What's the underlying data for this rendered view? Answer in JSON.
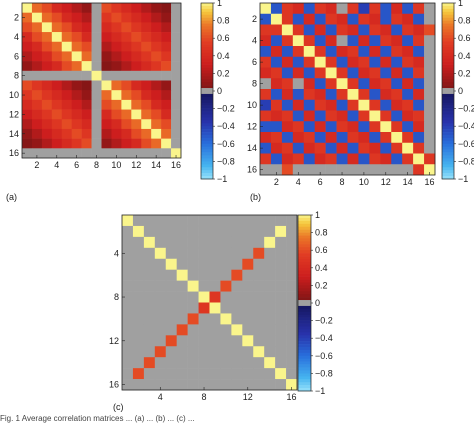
{
  "chart_data": [
    {
      "type": "heatmap",
      "panel_label": "(a)",
      "matrix_size": 16,
      "x_ticks": [
        "2",
        "4",
        "6",
        "8",
        "10",
        "12",
        "14",
        "16"
      ],
      "y_ticks": [
        "2",
        "4",
        "6",
        "8",
        "10",
        "12",
        "14",
        "16"
      ],
      "colorbar_ticks": [
        "1",
        "0.8",
        "0.6",
        "0.4",
        "0.2",
        "0",
        "−0.2",
        "−0.4",
        "−0.6",
        "−0.8",
        "−1"
      ],
      "clim": [
        -1,
        1
      ],
      "values": [
        [
          1,
          0.7,
          0.6,
          0.4,
          0.3,
          0.2,
          0.1,
          0,
          0.6,
          0.5,
          0.4,
          0.3,
          0.2,
          0.1,
          0.05,
          0
        ],
        [
          0.7,
          1,
          0.7,
          0.6,
          0.4,
          0.3,
          0.2,
          0,
          0.5,
          0.6,
          0.5,
          0.4,
          0.3,
          0.2,
          0.1,
          0
        ],
        [
          0.6,
          0.7,
          1,
          0.7,
          0.6,
          0.4,
          0.3,
          0,
          0.4,
          0.5,
          0.6,
          0.5,
          0.4,
          0.3,
          0.2,
          0
        ],
        [
          0.4,
          0.6,
          0.7,
          1,
          0.7,
          0.6,
          0.4,
          0,
          0.3,
          0.4,
          0.5,
          0.6,
          0.5,
          0.4,
          0.3,
          0
        ],
        [
          0.3,
          0.4,
          0.6,
          0.7,
          1,
          0.7,
          0.6,
          0,
          0.2,
          0.3,
          0.4,
          0.5,
          0.6,
          0.5,
          0.4,
          0
        ],
        [
          0.2,
          0.3,
          0.4,
          0.6,
          0.7,
          1,
          0.7,
          0,
          0.1,
          0.2,
          0.3,
          0.4,
          0.5,
          0.6,
          0.5,
          0
        ],
        [
          0.1,
          0.2,
          0.3,
          0.4,
          0.6,
          0.7,
          1,
          0,
          0.05,
          0.1,
          0.2,
          0.3,
          0.4,
          0.5,
          0.6,
          0
        ],
        [
          0,
          0,
          0,
          0,
          0,
          0,
          0,
          1,
          0,
          0,
          0,
          0,
          0,
          0,
          0,
          0
        ],
        [
          0.6,
          0.5,
          0.4,
          0.3,
          0.2,
          0.1,
          0.05,
          0,
          1,
          0.7,
          0.6,
          0.4,
          0.3,
          0.2,
          0.1,
          0
        ],
        [
          0.5,
          0.6,
          0.5,
          0.4,
          0.3,
          0.2,
          0.1,
          0,
          0.7,
          1,
          0.7,
          0.6,
          0.4,
          0.3,
          0.2,
          0
        ],
        [
          0.4,
          0.5,
          0.6,
          0.5,
          0.4,
          0.3,
          0.2,
          0,
          0.6,
          0.7,
          1,
          0.7,
          0.6,
          0.4,
          0.3,
          0
        ],
        [
          0.3,
          0.4,
          0.5,
          0.6,
          0.5,
          0.4,
          0.3,
          0,
          0.4,
          0.6,
          0.7,
          1,
          0.7,
          0.6,
          0.4,
          0
        ],
        [
          0.2,
          0.3,
          0.4,
          0.5,
          0.6,
          0.5,
          0.4,
          0,
          0.3,
          0.4,
          0.6,
          0.7,
          1,
          0.7,
          0.6,
          0
        ],
        [
          0.1,
          0.2,
          0.3,
          0.4,
          0.5,
          0.6,
          0.5,
          0,
          0.2,
          0.3,
          0.4,
          0.6,
          0.7,
          1,
          0.7,
          0
        ],
        [
          0.05,
          0.1,
          0.2,
          0.3,
          0.4,
          0.5,
          0.6,
          0,
          0.1,
          0.2,
          0.3,
          0.4,
          0.6,
          0.7,
          1,
          0
        ],
        [
          0,
          0,
          0,
          0,
          0,
          0,
          0,
          0,
          0,
          0,
          0,
          0,
          0,
          0,
          0,
          1
        ]
      ]
    },
    {
      "type": "heatmap",
      "panel_label": "(b)",
      "matrix_size": 16,
      "x_ticks": [
        "2",
        "4",
        "6",
        "8",
        "10",
        "12",
        "14",
        "16"
      ],
      "y_ticks": [
        "2",
        "4",
        "6",
        "8",
        "10",
        "12",
        "14",
        "16"
      ],
      "colorbar_ticks": [
        "1",
        "0.8",
        "0.6",
        "0.4",
        "0.2",
        "0",
        "−0.2",
        "−0.4",
        "−0.6",
        "−0.8",
        "−1"
      ],
      "clim": [
        -1,
        1
      ],
      "values": [
        [
          1,
          -0.5,
          0.5,
          0.4,
          -0.5,
          0.5,
          0.4,
          0,
          0.5,
          -0.4,
          0.5,
          -0.5,
          0.4,
          -0.5,
          0.5,
          0
        ],
        [
          -0.5,
          1,
          0.5,
          -0.5,
          0.4,
          -0.5,
          0.5,
          0.4,
          -0.5,
          0.5,
          0.4,
          -0.5,
          0.5,
          0.4,
          -0.5,
          0
        ],
        [
          0.5,
          0.5,
          1,
          0.5,
          -0.5,
          0.4,
          -0.5,
          0.5,
          0.4,
          -0.5,
          0.5,
          0.4,
          -0.5,
          0.5,
          0.4,
          0.6
        ],
        [
          0.4,
          -0.5,
          0.5,
          1,
          0.5,
          -0.5,
          0.4,
          0,
          -0.5,
          0.4,
          -0.5,
          0.5,
          0.4,
          -0.5,
          0.5,
          0
        ],
        [
          -0.5,
          0.4,
          -0.5,
          0.5,
          1,
          0.5,
          -0.5,
          0.4,
          0.5,
          -0.5,
          0.4,
          -0.5,
          0.5,
          0.4,
          -0.5,
          0
        ],
        [
          0.5,
          -0.5,
          0.4,
          -0.5,
          0.5,
          1,
          0.5,
          -0.5,
          0.4,
          0.5,
          -0.5,
          0.4,
          -0.5,
          0.5,
          0.4,
          0
        ],
        [
          0.4,
          0.5,
          -0.5,
          0.4,
          -0.5,
          0.5,
          1,
          0.5,
          -0.5,
          0.4,
          0.5,
          -0.5,
          0.4,
          -0.5,
          0.5,
          0
        ],
        [
          0,
          0.4,
          0.5,
          0,
          0.4,
          -0.5,
          0.5,
          1,
          0.5,
          -0.5,
          0.4,
          0.5,
          -0.5,
          0.4,
          -0.5,
          0
        ],
        [
          0.5,
          -0.5,
          0.4,
          -0.5,
          0.5,
          0.4,
          -0.5,
          0.5,
          1,
          0.5,
          -0.5,
          0.4,
          0.5,
          -0.5,
          0.4,
          0
        ],
        [
          -0.4,
          0.5,
          -0.5,
          0.4,
          -0.5,
          0.5,
          0.4,
          -0.5,
          0.5,
          1,
          0.5,
          -0.5,
          0.4,
          0.5,
          -0.5,
          0
        ],
        [
          0.5,
          0.4,
          0.5,
          -0.5,
          0.4,
          -0.5,
          0.5,
          0.4,
          -0.5,
          0.5,
          1,
          0.5,
          -0.5,
          0.4,
          0.5,
          0
        ],
        [
          -0.5,
          -0.5,
          0.4,
          0.5,
          -0.5,
          0.4,
          -0.5,
          0.5,
          0.4,
          -0.5,
          0.5,
          1,
          0.5,
          -0.5,
          0.4,
          0
        ],
        [
          0.4,
          0.5,
          -0.5,
          0.4,
          0.5,
          -0.5,
          0.4,
          -0.5,
          0.5,
          0.4,
          -0.5,
          0.5,
          1,
          0.5,
          -0.5,
          0
        ],
        [
          -0.5,
          0.4,
          0.5,
          -0.5,
          0.4,
          0.5,
          -0.5,
          0.4,
          -0.5,
          0.5,
          0.4,
          -0.5,
          0.5,
          1,
          0.5,
          0
        ],
        [
          0.5,
          -0.5,
          0.4,
          0.5,
          -0.5,
          0.4,
          0.5,
          -0.5,
          0.4,
          -0.5,
          0.5,
          0.4,
          -0.5,
          0.5,
          1,
          0.5
        ],
        [
          0,
          0,
          0.6,
          0,
          0,
          0,
          0,
          0,
          0,
          0,
          0,
          0,
          0,
          0,
          0.5,
          1
        ]
      ]
    },
    {
      "type": "heatmap",
      "panel_label": "(c)",
      "matrix_size": 16,
      "x_ticks": [
        "4",
        "8",
        "12",
        "16"
      ],
      "y_ticks": [
        "4",
        "8",
        "12",
        "16"
      ],
      "colorbar_ticks": [
        "1",
        "0.8",
        "0.6",
        "0.4",
        "0.2",
        "0",
        "−0.2",
        "−0.4",
        "−0.6",
        "−0.8",
        "−1"
      ],
      "clim": [
        -1,
        1
      ],
      "values": [
        [
          1,
          0,
          0,
          0,
          0,
          0,
          0,
          0,
          0,
          0,
          0,
          0,
          0,
          0,
          0,
          0
        ],
        [
          0,
          1,
          0,
          0,
          0,
          0,
          0,
          0,
          0,
          0,
          0,
          0,
          0,
          0,
          1,
          0
        ],
        [
          0,
          0,
          1,
          0,
          0,
          0,
          0,
          0,
          0,
          0,
          0,
          0,
          0,
          1,
          0,
          0
        ],
        [
          0,
          0,
          0,
          1,
          0,
          0,
          0,
          0,
          0,
          0,
          0,
          0,
          0.6,
          0,
          0,
          0
        ],
        [
          0,
          0,
          0,
          0,
          1,
          0,
          0,
          0,
          0,
          0,
          0,
          0.6,
          0,
          0,
          0,
          0
        ],
        [
          0,
          0,
          0,
          0,
          0,
          1,
          0,
          0,
          0,
          0,
          0.6,
          0,
          0,
          0,
          0,
          0
        ],
        [
          0,
          0,
          0,
          0,
          0,
          0,
          1,
          0,
          0,
          0.6,
          0,
          0,
          0,
          0,
          0,
          0
        ],
        [
          0,
          0,
          0,
          0,
          0,
          0,
          0,
          1,
          0.5,
          0,
          0,
          0,
          0,
          0,
          0,
          0
        ],
        [
          0,
          0,
          0,
          0,
          0,
          0,
          0,
          0.5,
          1,
          0,
          0,
          0,
          0,
          0,
          0,
          0
        ],
        [
          0,
          0,
          0,
          0,
          0,
          0,
          0.6,
          0,
          0,
          1,
          0,
          0,
          0,
          0,
          0,
          0
        ],
        [
          0,
          0,
          0,
          0,
          0,
          0.6,
          0,
          0,
          0,
          0,
          1,
          0,
          0,
          0,
          0,
          0
        ],
        [
          0,
          0,
          0,
          0,
          0.6,
          0,
          0,
          0,
          0,
          0,
          0,
          1,
          0,
          0,
          0,
          0
        ],
        [
          0,
          0,
          0,
          0.6,
          0,
          0,
          0,
          0,
          0,
          0,
          0,
          0,
          1,
          0,
          0,
          0
        ],
        [
          0,
          0,
          0.6,
          0,
          0,
          0,
          0,
          0,
          0,
          0,
          0,
          0,
          0,
          1,
          0,
          0
        ],
        [
          0,
          0.6,
          0,
          0,
          0,
          0,
          0,
          0,
          0,
          0,
          0,
          0,
          0,
          0,
          1,
          0
        ],
        [
          0,
          0,
          0,
          0,
          0,
          0,
          0,
          0,
          0,
          0,
          0,
          0,
          0,
          0,
          0,
          1
        ]
      ]
    }
  ],
  "caption_text": "Fig. 1 Average correlation matrices ... (a) ... (b) ... (c) ..."
}
